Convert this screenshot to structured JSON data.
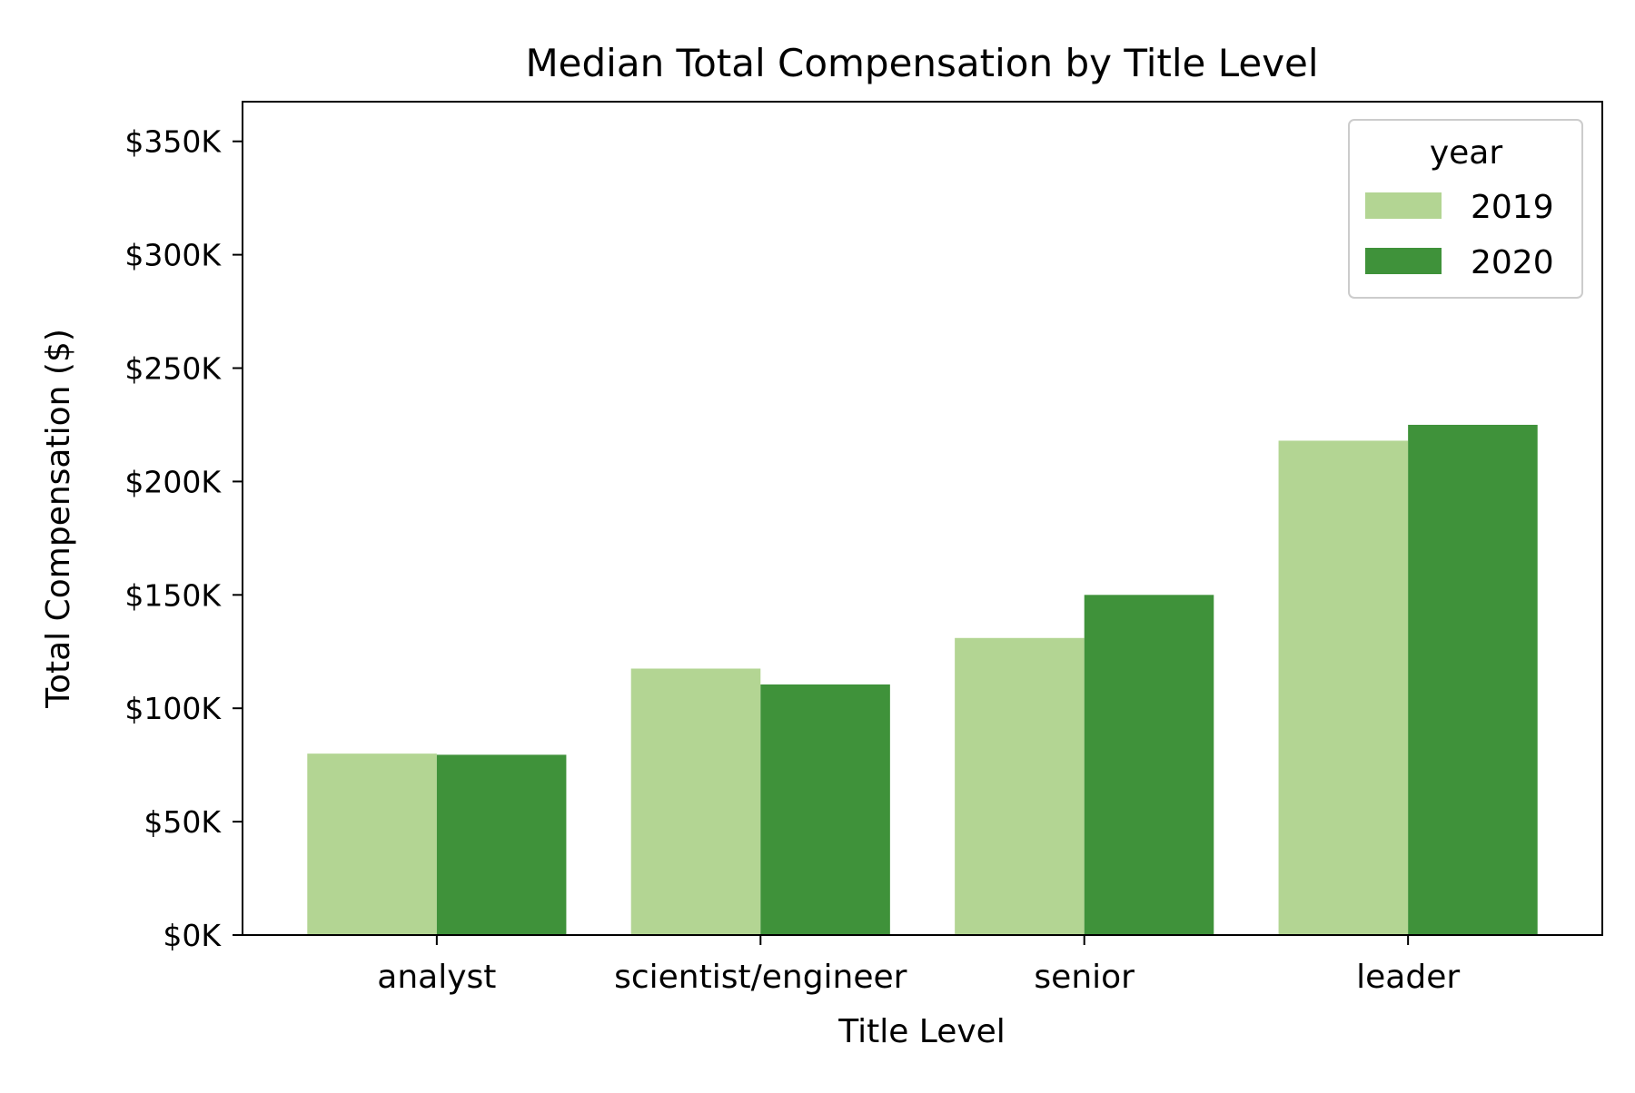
{
  "chart_data": {
    "type": "bar",
    "title": "Median Total Compensation by Title Level",
    "xlabel": "Title Level",
    "ylabel": "Total Compensation ($)",
    "categories": [
      "analyst",
      "scientist/engineer",
      "senior",
      "leader"
    ],
    "series": [
      {
        "name": "2019",
        "values": [
          80000,
          117500,
          131000,
          218000
        ],
        "color": "#b3d593"
      },
      {
        "name": "2020",
        "values": [
          79500,
          110500,
          150000,
          225000
        ],
        "color": "#3f923a"
      }
    ],
    "ylim": [
      0,
      367500
    ],
    "yticks": [
      0,
      50000,
      100000,
      150000,
      200000,
      250000,
      300000,
      350000
    ],
    "ytick_labels": [
      "$0K",
      "$50K",
      "$100K",
      "$150K",
      "$200K",
      "$250K",
      "$300K",
      "$350K"
    ],
    "grid": false,
    "legend": {
      "title": "year",
      "position": "top-right"
    }
  }
}
